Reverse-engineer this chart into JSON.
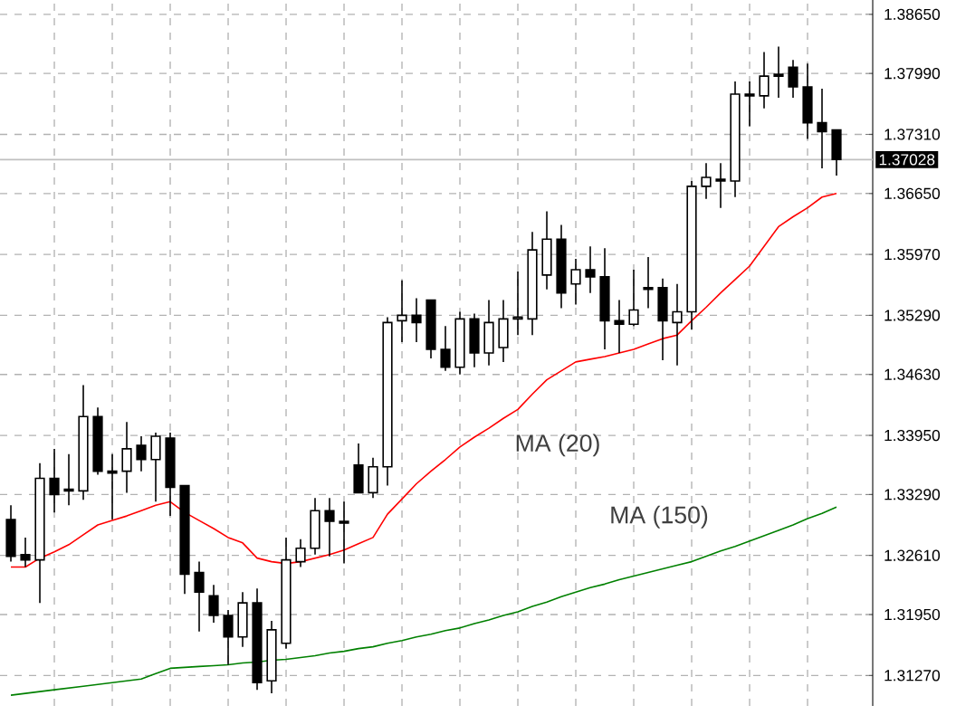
{
  "chart_data": {
    "type": "candlestick",
    "categories": [
      null,
      null,
      null,
      null,
      null,
      null,
      null,
      null,
      null,
      null,
      null,
      null,
      null,
      null,
      null,
      null,
      null,
      null,
      null,
      null,
      null,
      null,
      null,
      null,
      null,
      null,
      null,
      null,
      null,
      null,
      null,
      null,
      null,
      null,
      null,
      null,
      null,
      null,
      null,
      null,
      null,
      null,
      null,
      null,
      null,
      null,
      null,
      null,
      null,
      null,
      null,
      null,
      null,
      null,
      null,
      null,
      null,
      null
    ],
    "ohlc": [
      [
        1.3301,
        1.3317,
        1.3254,
        1.326
      ],
      [
        1.3262,
        1.3281,
        1.3248,
        1.3256
      ],
      [
        1.3256,
        1.3364,
        1.3208,
        1.3347
      ],
      [
        1.3347,
        1.338,
        1.3309,
        1.3329
      ],
      [
        1.3335,
        1.3374,
        1.3317,
        1.3333
      ],
      [
        1.3333,
        1.3451,
        1.3323,
        1.3416
      ],
      [
        1.3416,
        1.3426,
        1.3351,
        1.3355
      ],
      [
        1.3355,
        1.3374,
        1.3301,
        1.3353
      ],
      [
        1.3355,
        1.341,
        1.3331,
        1.338
      ],
      [
        1.3384,
        1.3394,
        1.3355,
        1.3368
      ],
      [
        1.3368,
        1.3398,
        1.3321,
        1.3394
      ],
      [
        1.3392,
        1.3398,
        1.3305,
        1.3337
      ],
      [
        1.3339,
        1.3339,
        1.3218,
        1.324
      ],
      [
        1.3242,
        1.3254,
        1.3176,
        1.322
      ],
      [
        1.3216,
        1.3228,
        1.3186,
        1.3194
      ],
      [
        1.3194,
        1.32,
        1.3139,
        1.317
      ],
      [
        1.317,
        1.322,
        1.3159,
        1.3208
      ],
      [
        1.3208,
        1.3224,
        1.3111,
        1.3119
      ],
      [
        1.3121,
        1.3188,
        1.3107,
        1.3178
      ],
      [
        1.3163,
        1.3281,
        1.3157,
        1.3256
      ],
      [
        1.3254,
        1.3279,
        1.3248,
        1.3269
      ],
      [
        1.3269,
        1.3325,
        1.3262,
        1.3311
      ],
      [
        1.3311,
        1.3325,
        1.326,
        1.3299
      ],
      [
        1.3299,
        1.3321,
        1.3252,
        1.3297
      ],
      [
        1.3362,
        1.3386,
        1.3331,
        1.3331
      ],
      [
        1.3331,
        1.337,
        1.3325,
        1.336
      ],
      [
        1.336,
        1.3527,
        1.3339,
        1.3521
      ],
      [
        1.3523,
        1.3568,
        1.3499,
        1.3529
      ],
      [
        1.3529,
        1.3548,
        1.3499,
        1.3521
      ],
      [
        1.3546,
        1.3546,
        1.3481,
        1.3491
      ],
      [
        1.3491,
        1.3517,
        1.3467,
        1.3471
      ],
      [
        1.3471,
        1.3533,
        1.3463,
        1.3525
      ],
      [
        1.3525,
        1.3531,
        1.3471,
        1.3487
      ],
      [
        1.3487,
        1.3546,
        1.3473,
        1.3521
      ],
      [
        1.3493,
        1.3546,
        1.3477,
        1.3525
      ],
      [
        1.3525,
        1.3578,
        1.3507,
        1.3527
      ],
      [
        1.3525,
        1.3622,
        1.3507,
        1.3602
      ],
      [
        1.3574,
        1.3645,
        1.3558,
        1.3614
      ],
      [
        1.3614,
        1.363,
        1.3537,
        1.3554
      ],
      [
        1.3564,
        1.3592,
        1.3541,
        1.358
      ],
      [
        1.358,
        1.3606,
        1.3554,
        1.3572
      ],
      [
        1.3572,
        1.3604,
        1.3491,
        1.3523
      ],
      [
        1.3523,
        1.3546,
        1.3487,
        1.3519
      ],
      [
        1.3519,
        1.358,
        1.3517,
        1.3535
      ],
      [
        1.356,
        1.3594,
        1.3537,
        1.3558
      ],
      [
        1.356,
        1.357,
        1.3479,
        1.3523
      ],
      [
        1.3521,
        1.3564,
        1.3473,
        1.3533
      ],
      [
        1.3533,
        1.3679,
        1.3513,
        1.3673
      ],
      [
        1.3673,
        1.3699,
        1.3659,
        1.3683
      ],
      [
        1.3681,
        1.3699,
        1.3649,
        1.3679
      ],
      [
        1.3679,
        1.379,
        1.3661,
        1.3776
      ],
      [
        1.3776,
        1.379,
        1.374,
        1.3774
      ],
      [
        1.3774,
        1.3823,
        1.376,
        1.3796
      ],
      [
        1.3798,
        1.3829,
        1.3772,
        1.3796
      ],
      [
        1.3806,
        1.3814,
        1.3772,
        1.3784
      ],
      [
        1.3784,
        1.381,
        1.3726,
        1.3744
      ],
      [
        1.3744,
        1.3782,
        1.3693,
        1.3734
      ],
      [
        1.3736,
        1.3736,
        1.3685,
        1.3703
      ]
    ],
    "series": [
      {
        "name": "MA (20)",
        "type": "line",
        "color": "#ff0000",
        "values": [
          1.3248,
          1.3248,
          1.3258,
          1.3265,
          1.3273,
          1.3284,
          1.3295,
          1.33,
          1.3305,
          1.3311,
          1.3317,
          1.3321,
          1.3309,
          1.33,
          1.3291,
          1.3281,
          1.3275,
          1.3258,
          1.3254,
          1.3252,
          1.3254,
          1.3258,
          1.3262,
          1.3267,
          1.3274,
          1.3281,
          1.3307,
          1.3324,
          1.3341,
          1.3355,
          1.3368,
          1.3382,
          1.3393,
          1.3403,
          1.3414,
          1.3424,
          1.3441,
          1.3457,
          1.3467,
          1.3477,
          1.348,
          1.3483,
          1.3487,
          1.3491,
          1.3497,
          1.3503,
          1.3507,
          1.3523,
          1.3538,
          1.3554,
          1.3569,
          1.3584,
          1.3606,
          1.3628,
          1.3639,
          1.3649,
          1.3661,
          1.3665
        ]
      },
      {
        "name": "MA (150)",
        "type": "line",
        "color": "#008000",
        "values": [
          1.3105,
          1.3107,
          1.3109,
          1.3111,
          1.3113,
          1.3115,
          1.3117,
          1.3119,
          1.3121,
          1.3123,
          1.3129,
          1.3135,
          1.3136,
          1.3137,
          1.3138,
          1.3139,
          1.3141,
          1.3142,
          1.3144,
          1.3145,
          1.3147,
          1.3149,
          1.3152,
          1.3154,
          1.3157,
          1.3159,
          1.3163,
          1.3166,
          1.317,
          1.3173,
          1.3177,
          1.318,
          1.3185,
          1.3189,
          1.3194,
          1.3198,
          1.3204,
          1.3209,
          1.3215,
          1.322,
          1.3225,
          1.3229,
          1.3234,
          1.3238,
          1.3242,
          1.3246,
          1.325,
          1.3254,
          1.326,
          1.3266,
          1.3271,
          1.3277,
          1.3283,
          1.3289,
          1.3295,
          1.3302,
          1.3308,
          1.3315
        ]
      }
    ],
    "ylim": [
      1.3093,
      1.3881
    ],
    "yticks": [
      {
        "value": 1.3127,
        "label": "1.31270"
      },
      {
        "value": 1.3195,
        "label": "1.31950"
      },
      {
        "value": 1.3261,
        "label": "1.32610"
      },
      {
        "value": 1.3329,
        "label": "1.33290"
      },
      {
        "value": 1.3395,
        "label": "1.33950"
      },
      {
        "value": 1.3463,
        "label": "1.34630"
      },
      {
        "value": 1.3529,
        "label": "1.35290"
      },
      {
        "value": 1.3597,
        "label": "1.35970"
      },
      {
        "value": 1.3665,
        "label": "1.36650"
      },
      {
        "value": 1.3731,
        "label": "1.37310"
      },
      {
        "value": 1.3799,
        "label": "1.37990"
      },
      {
        "value": 1.3865,
        "label": "1.38650"
      }
    ],
    "ref_lines": [
      {
        "axis": "y",
        "value": 1.37028,
        "label": "1.37028",
        "color": "#c0c0c0"
      }
    ],
    "grid": true,
    "tick_labels": "y"
  }
}
